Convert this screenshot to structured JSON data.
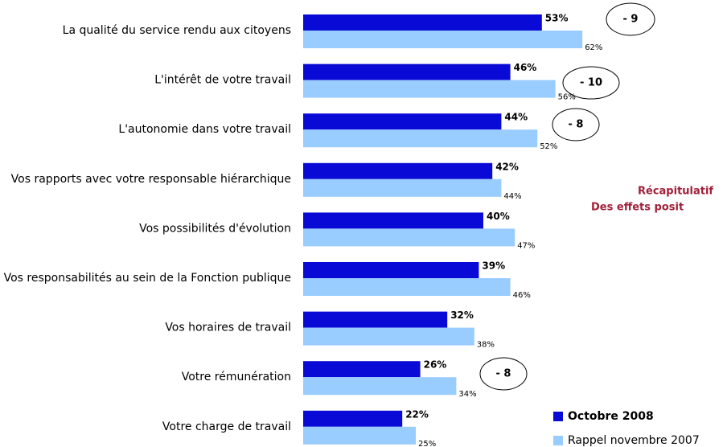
{
  "chart_data": {
    "type": "bar",
    "orientation": "horizontal",
    "categories": [
      "La qualité du service rendu aux citoyens",
      "L'intérêt de votre travail",
      "L'autonomie dans votre travail",
      "Vos rapports avec votre responsable hiérarchique",
      "Vos possibilités d'évolution",
      "Vos responsabilités au sein de la Fonction publique",
      "Vos horaires de travail",
      "Votre rémunération",
      "Votre charge de travail"
    ],
    "series": [
      {
        "name": "Octobre 2008",
        "color": "#0a0ad6",
        "values": [
          53,
          46,
          44,
          42,
          40,
          39,
          32,
          26,
          22
        ],
        "value_labels": [
          "53%",
          "46%",
          "44%",
          "42%",
          "40%",
          "39%",
          "32%",
          "26%",
          "22%"
        ]
      },
      {
        "name": "Rappel novembre 2007",
        "color": "#99ccff",
        "values": [
          62,
          56,
          52,
          44,
          47,
          46,
          38,
          34,
          25
        ],
        "value_labels": [
          "62%",
          "56%",
          "52%",
          "44%",
          "47%",
          "46%",
          "38%",
          "34%",
          "25%"
        ]
      }
    ],
    "annotations": [
      "- 9",
      "- 10",
      "- 8",
      "- 8"
    ],
    "side_note": [
      "Récapitulatif",
      "Des effets posit"
    ]
  }
}
